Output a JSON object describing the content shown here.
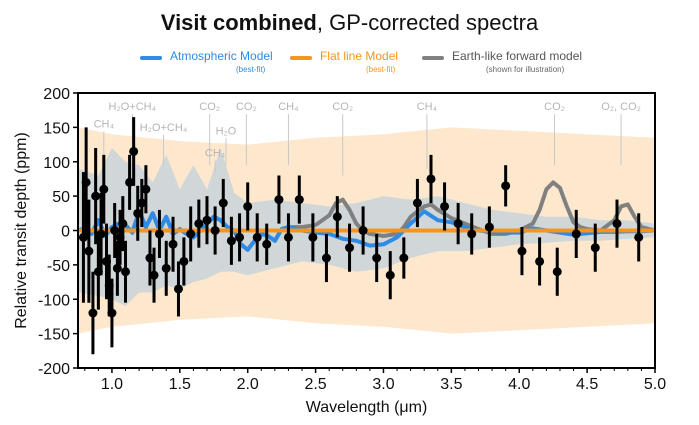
{
  "title_bold": "Visit combined",
  "title_rest": ", GP-corrected spectra",
  "legend": [
    {
      "label": "Atmospheric Model",
      "sub": "(best-fit)",
      "color": "#2e8be6"
    },
    {
      "label": "Flat line Model",
      "sub": "(best-fit)",
      "color": "#f7941d"
    },
    {
      "label": "Earth-like forward model",
      "sub": "(shown for illustration)",
      "color": "#808080"
    }
  ],
  "chart_data": {
    "type": "scatter",
    "xlabel": "Wavelength (μm)",
    "ylabel": "Relative transit depth (ppm)",
    "xlim": [
      0.75,
      5.0
    ],
    "ylim": [
      -200,
      200
    ],
    "xticks": [
      1.0,
      1.5,
      2.0,
      2.5,
      3.0,
      3.5,
      4.0,
      4.5,
      5.0
    ],
    "xtick_labels": [
      "1.0",
      "1.5",
      "2.0",
      "2.5",
      "3.0",
      "3.5",
      "4.0",
      "4.5",
      "5.0"
    ],
    "yticks": [
      -200,
      -150,
      -100,
      -50,
      0,
      50,
      100,
      150,
      200
    ],
    "ytick_labels": [
      "-200",
      "-150",
      "-100",
      "-50",
      "0",
      "50",
      "100",
      "150",
      "200"
    ],
    "grid": false,
    "legend_position": "top",
    "annotations": [
      {
        "text": "CH₄",
        "x": 0.94,
        "y": 150,
        "line_to": 95
      },
      {
        "text": "H₂O+CH₄",
        "x": 1.15,
        "y": 175,
        "line_to": 95
      },
      {
        "text": "H₂O+CH₄",
        "x": 1.38,
        "y": 145,
        "line_to": 95
      },
      {
        "text": "CO₂",
        "x": 1.72,
        "y": 175,
        "line_to": 95
      },
      {
        "text": "CO₂",
        "x": 1.99,
        "y": 175,
        "line_to": 95
      },
      {
        "text": "H₂O",
        "x": 1.84,
        "y": 140,
        "line_to": 95
      },
      {
        "text": "CH₄",
        "x": 1.76,
        "y": 108,
        "line_to": 85
      },
      {
        "text": "CH₄",
        "x": 2.3,
        "y": 175,
        "line_to": 95
      },
      {
        "text": "CO₂",
        "x": 2.7,
        "y": 175,
        "line_to": 80
      },
      {
        "text": "CH₄",
        "x": 3.32,
        "y": 175,
        "line_to": 90
      },
      {
        "text": "CO₂",
        "x": 4.26,
        "y": 175,
        "line_to": 95
      },
      {
        "text": "O₂, CO₂",
        "x": 4.75,
        "y": 175,
        "line_to": 95
      }
    ],
    "series": [
      {
        "name": "Atmospheric Model",
        "kind": "line",
        "color": "#2e8be6",
        "x": [
          0.75,
          0.8,
          0.85,
          0.9,
          0.95,
          1.0,
          1.05,
          1.1,
          1.15,
          1.2,
          1.25,
          1.3,
          1.35,
          1.4,
          1.45,
          1.5,
          1.55,
          1.6,
          1.65,
          1.7,
          1.75,
          1.8,
          1.85,
          1.9,
          1.95,
          2.0,
          2.05,
          2.1,
          2.15,
          2.2,
          2.25,
          2.3,
          2.35,
          2.4,
          2.5,
          2.6,
          2.7,
          2.8,
          2.9,
          3.0,
          3.1,
          3.2,
          3.3,
          3.4,
          3.5,
          3.6,
          3.7,
          3.8,
          3.9,
          4.0,
          4.1,
          4.2,
          4.3,
          4.4,
          4.5,
          4.6,
          4.7,
          4.8,
          4.9,
          5.0
        ],
        "y": [
          0,
          3,
          -5,
          15,
          -8,
          5,
          10,
          8,
          -3,
          28,
          5,
          25,
          0,
          20,
          -5,
          2,
          -5,
          -10,
          0,
          10,
          20,
          15,
          5,
          0,
          -20,
          -28,
          -15,
          -5,
          -8,
          -15,
          2,
          5,
          3,
          0,
          -3,
          -5,
          -12,
          -15,
          -22,
          -20,
          -10,
          10,
          28,
          15,
          12,
          5,
          0,
          -2,
          -3,
          -3,
          3,
          0,
          -3,
          -6,
          -4,
          -2,
          -2,
          -1,
          -1,
          0
        ]
      },
      {
        "name": "Flat line Model",
        "kind": "line",
        "color": "#f7941d",
        "x": [
          0.75,
          5.0
        ],
        "y": [
          0,
          0
        ]
      },
      {
        "name": "Earth-like forward model",
        "kind": "line",
        "color": "#808080",
        "x": [
          0.75,
          0.8,
          0.85,
          0.9,
          0.95,
          1.0,
          1.05,
          1.1,
          1.15,
          1.2,
          1.25,
          1.3,
          1.35,
          1.4,
          1.45,
          1.5,
          1.55,
          1.6,
          1.65,
          1.7,
          1.75,
          1.8,
          1.85,
          1.9,
          1.95,
          2.0,
          2.05,
          2.1,
          2.15,
          2.2,
          2.25,
          2.3,
          2.35,
          2.4,
          2.5,
          2.6,
          2.65,
          2.7,
          2.75,
          2.8,
          2.85,
          2.9,
          3.0,
          3.1,
          3.15,
          3.2,
          3.3,
          3.35,
          3.4,
          3.5,
          3.6,
          3.7,
          3.8,
          3.9,
          4.0,
          4.1,
          4.15,
          4.2,
          4.25,
          4.3,
          4.35,
          4.4,
          4.45,
          4.5,
          4.6,
          4.7,
          4.75,
          4.8,
          4.85,
          4.9,
          5.0
        ],
        "y": [
          0,
          3,
          -5,
          15,
          -8,
          5,
          10,
          8,
          -3,
          28,
          5,
          25,
          0,
          20,
          -5,
          2,
          -5,
          -10,
          0,
          10,
          20,
          15,
          5,
          0,
          -20,
          -28,
          -15,
          -5,
          -8,
          -15,
          2,
          5,
          5,
          5,
          8,
          22,
          40,
          45,
          30,
          10,
          0,
          -5,
          -8,
          -5,
          5,
          20,
          35,
          38,
          30,
          18,
          10,
          2,
          -5,
          -5,
          0,
          10,
          30,
          60,
          70,
          62,
          35,
          12,
          5,
          2,
          0,
          15,
          35,
          38,
          20,
          5,
          0
        ]
      },
      {
        "name": "",
        "kind": "points",
        "color": "#000000",
        "x": [
          0.79,
          0.81,
          0.83,
          0.86,
          0.88,
          0.9,
          0.92,
          0.94,
          0.96,
          0.98,
          1.0,
          1.02,
          1.04,
          1.06,
          1.08,
          1.1,
          1.13,
          1.16,
          1.19,
          1.22,
          1.25,
          1.28,
          1.31,
          1.35,
          1.4,
          1.45,
          1.49,
          1.53,
          1.58,
          1.64,
          1.7,
          1.76,
          1.82,
          1.88,
          1.94,
          2.0,
          2.07,
          2.14,
          2.23,
          2.3,
          2.38,
          2.48,
          2.58,
          2.66,
          2.75,
          2.85,
          2.95,
          3.05,
          3.15,
          3.25,
          3.35,
          3.45,
          3.55,
          3.65,
          3.78,
          3.9,
          4.02,
          4.15,
          4.28,
          4.42,
          4.56,
          4.72,
          4.88
        ],
        "y": [
          -10,
          70,
          -30,
          -120,
          50,
          -60,
          -5,
          60,
          -45,
          -80,
          -120,
          0,
          -55,
          -10,
          10,
          -60,
          70,
          115,
          25,
          40,
          60,
          -40,
          -65,
          -5,
          -55,
          -20,
          -85,
          -45,
          -5,
          10,
          15,
          0,
          40,
          -15,
          -10,
          35,
          -10,
          -20,
          45,
          -10,
          45,
          -10,
          -40,
          20,
          -25,
          0,
          -40,
          -65,
          -40,
          40,
          75,
          35,
          10,
          -5,
          5,
          65,
          -30,
          -45,
          -60,
          -5,
          -25,
          10,
          -10
        ],
        "err": [
          95,
          80,
          75,
          60,
          70,
          55,
          60,
          50,
          55,
          45,
          50,
          40,
          40,
          40,
          40,
          45,
          40,
          50,
          40,
          35,
          35,
          40,
          40,
          35,
          40,
          40,
          40,
          35,
          40,
          35,
          35,
          35,
          35,
          35,
          35,
          35,
          35,
          30,
          35,
          35,
          35,
          35,
          35,
          30,
          35,
          35,
          35,
          35,
          30,
          35,
          35,
          35,
          30,
          30,
          30,
          30,
          35,
          35,
          35,
          35,
          35,
          35,
          35
        ]
      }
    ],
    "bands": [
      {
        "name": "Flat line Model",
        "color": "#f7941d",
        "opacity": 0.22,
        "x": [
          0.75,
          1.0,
          1.5,
          2.0,
          2.5,
          3.0,
          3.5,
          4.0,
          4.5,
          5.0
        ],
        "upper": [
          150,
          140,
          130,
          125,
          135,
          140,
          150,
          145,
          140,
          135
        ],
        "lower": [
          -150,
          -140,
          -130,
          -125,
          -135,
          -140,
          -150,
          -145,
          -140,
          -135
        ]
      },
      {
        "name": "Atmospheric Model",
        "color": "#7fb8ef",
        "opacity": 0.35,
        "x": [
          0.75,
          0.9,
          1.0,
          1.1,
          1.2,
          1.3,
          1.4,
          1.5,
          1.6,
          1.7,
          1.8,
          1.9,
          2.0,
          2.2,
          2.4,
          2.6,
          2.8,
          3.0,
          3.2,
          3.4,
          3.6,
          3.8,
          4.0,
          4.2,
          4.4,
          4.6,
          4.8,
          5.0
        ],
        "upper": [
          90,
          80,
          120,
          100,
          95,
          70,
          110,
          60,
          95,
          60,
          120,
          55,
          40,
          45,
          40,
          35,
          40,
          50,
          45,
          50,
          40,
          30,
          25,
          20,
          20,
          15,
          15,
          10
        ],
        "lower": [
          -90,
          -95,
          -100,
          -110,
          -90,
          -90,
          -80,
          -85,
          -75,
          -70,
          -60,
          -60,
          -65,
          -55,
          -45,
          -50,
          -60,
          -55,
          -40,
          -30,
          -30,
          -25,
          -20,
          -18,
          -15,
          -15,
          -12,
          -10
        ]
      }
    ]
  }
}
